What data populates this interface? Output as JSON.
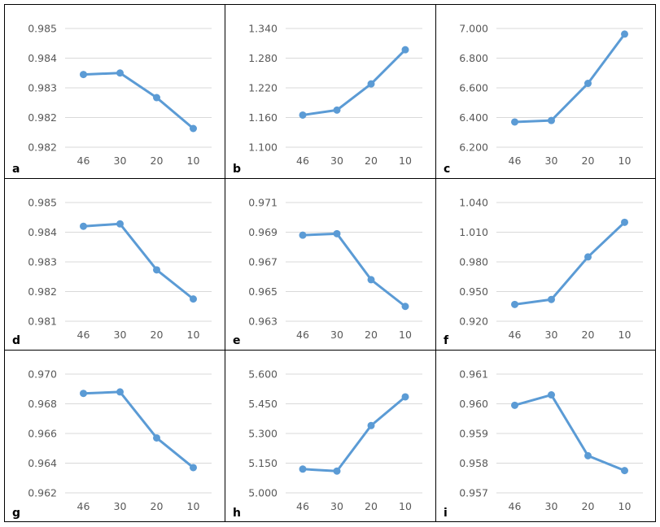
{
  "line_color": "#5B9BD5",
  "grid_color": "#D9D9D9",
  "chart_data": [
    {
      "type": "line",
      "letter": "a",
      "categories": [
        "46",
        "30",
        "20",
        "10"
      ],
      "values": [
        0.98395,
        0.984,
        0.98317,
        0.98213
      ],
      "ylim": [
        0.9815,
        0.9855
      ],
      "yticks": [
        0.9815,
        0.9825,
        0.9835,
        0.9845,
        0.9855
      ],
      "ytick_labels": [
        "0.982",
        "0.982",
        "0.983",
        "0.984",
        "0.985"
      ]
    },
    {
      "type": "line",
      "letter": "b",
      "categories": [
        "46",
        "30",
        "20",
        "10"
      ],
      "values": [
        1.165,
        1.175,
        1.228,
        1.297
      ],
      "ylim": [
        1.1,
        1.34
      ],
      "yticks": [
        1.1,
        1.16,
        1.22,
        1.28,
        1.34
      ],
      "ytick_labels": [
        "1.100",
        "1.160",
        "1.220",
        "1.280",
        "1.340"
      ]
    },
    {
      "type": "line",
      "letter": "c",
      "categories": [
        "46",
        "30",
        "20",
        "10"
      ],
      "values": [
        6.37,
        6.38,
        6.63,
        6.962
      ],
      "ylim": [
        6.2,
        7.0
      ],
      "yticks": [
        6.2,
        6.4,
        6.6,
        6.8,
        7.0
      ],
      "ytick_labels": [
        "6.200",
        "6.400",
        "6.600",
        "6.800",
        "7.000"
      ]
    },
    {
      "type": "line",
      "letter": "d",
      "categories": [
        "46",
        "30",
        "20",
        "10"
      ],
      "values": [
        0.9842,
        0.98428,
        0.98273,
        0.98175
      ],
      "ylim": [
        0.981,
        0.985
      ],
      "yticks": [
        0.981,
        0.982,
        0.983,
        0.984,
        0.985
      ],
      "ytick_labels": [
        "0.981",
        "0.982",
        "0.983",
        "0.984",
        "0.985"
      ]
    },
    {
      "type": "line",
      "letter": "e",
      "categories": [
        "46",
        "30",
        "20",
        "10"
      ],
      "values": [
        0.9688,
        0.9689,
        0.9658,
        0.964
      ],
      "ylim": [
        0.963,
        0.971
      ],
      "yticks": [
        0.963,
        0.965,
        0.967,
        0.969,
        0.971
      ],
      "ytick_labels": [
        "0.963",
        "0.965",
        "0.967",
        "0.969",
        "0.971"
      ]
    },
    {
      "type": "line",
      "letter": "f",
      "categories": [
        "46",
        "30",
        "20",
        "10"
      ],
      "values": [
        0.937,
        0.942,
        0.985,
        1.02
      ],
      "ylim": [
        0.92,
        1.04
      ],
      "yticks": [
        0.92,
        0.95,
        0.98,
        1.01,
        1.04
      ],
      "ytick_labels": [
        "0.920",
        "0.950",
        "0.980",
        "1.010",
        "1.040"
      ]
    },
    {
      "type": "line",
      "letter": "g",
      "categories": [
        "46",
        "30",
        "20",
        "10"
      ],
      "values": [
        0.9687,
        0.9688,
        0.9657,
        0.9637
      ],
      "ylim": [
        0.962,
        0.97
      ],
      "yticks": [
        0.962,
        0.964,
        0.966,
        0.968,
        0.97
      ],
      "ytick_labels": [
        "0.962",
        "0.964",
        "0.966",
        "0.968",
        "0.970"
      ]
    },
    {
      "type": "line",
      "letter": "h",
      "categories": [
        "46",
        "30",
        "20",
        "10"
      ],
      "values": [
        5.12,
        5.11,
        5.34,
        5.485
      ],
      "ylim": [
        5.0,
        5.6
      ],
      "yticks": [
        5.0,
        5.15,
        5.3,
        5.45,
        5.6
      ],
      "ytick_labels": [
        "5.000",
        "5.150",
        "5.300",
        "5.450",
        "5.600"
      ]
    },
    {
      "type": "line",
      "letter": "i",
      "categories": [
        "46",
        "30",
        "20",
        "10"
      ],
      "values": [
        0.95995,
        0.9603,
        0.95825,
        0.95775
      ],
      "ylim": [
        0.957,
        0.961
      ],
      "yticks": [
        0.957,
        0.958,
        0.959,
        0.96,
        0.961
      ],
      "ytick_labels": [
        "0.957",
        "0.958",
        "0.959",
        "0.960",
        "0.961"
      ]
    }
  ]
}
